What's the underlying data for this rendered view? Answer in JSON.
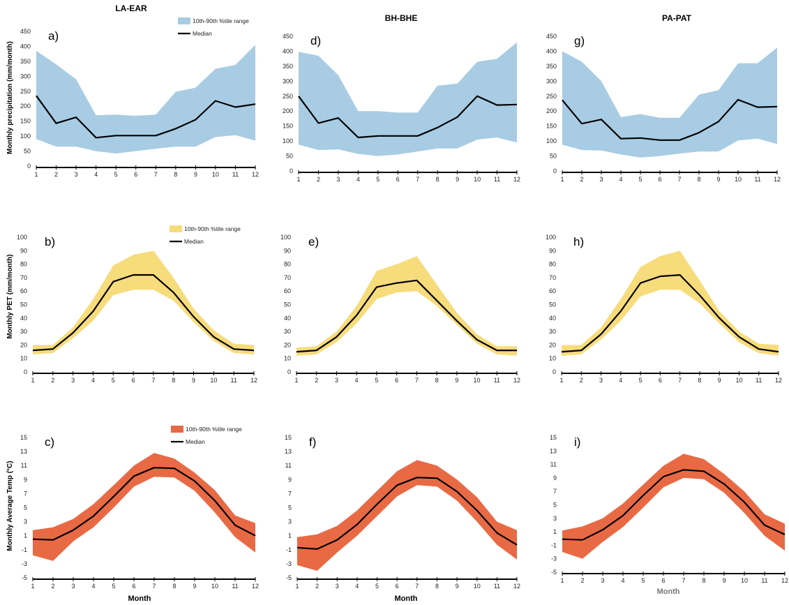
{
  "column_titles": [
    "LA-EAR",
    "BH-BHE",
    "PA-PAT"
  ],
  "row_ylabels": [
    "Monthly precipitation (mm/month)",
    "Monthly PET (mm/month)",
    "Monthly  Average Temp  (°C)"
  ],
  "xlabel": "Month",
  "legend": {
    "range_label": "10th-90th %tile range",
    "median_label": "Median"
  },
  "colors": {
    "precipitation": "#a8cce3",
    "pet": "#f7dc7c",
    "temperature": "#e86a45",
    "median": "#000000",
    "axis": "#000000"
  },
  "chart_data": [
    {
      "panel": "a)",
      "type": "area",
      "x": [
        1,
        2,
        3,
        4,
        5,
        6,
        7,
        8,
        9,
        10,
        11,
        12
      ],
      "median": [
        235,
        143,
        163,
        95,
        102,
        102,
        102,
        125,
        155,
        218,
        197,
        207
      ],
      "p10": [
        90,
        65,
        65,
        50,
        42,
        50,
        58,
        65,
        65,
        97,
        103,
        85
      ],
      "p90": [
        385,
        340,
        290,
        170,
        172,
        168,
        172,
        248,
        262,
        325,
        338,
        405
      ],
      "ylim": [
        0,
        450
      ],
      "yticks": [
        0,
        50,
        100,
        150,
        200,
        250,
        300,
        350,
        400,
        450
      ],
      "legend": true
    },
    {
      "panel": "b)",
      "type": "area",
      "x": [
        1,
        2,
        3,
        4,
        5,
        6,
        7,
        8,
        9,
        10,
        11,
        12
      ],
      "median": [
        16,
        17,
        29,
        45,
        67,
        72,
        72,
        59,
        41,
        26,
        17,
        16
      ],
      "p10": [
        13,
        14,
        25,
        38,
        57,
        61,
        61,
        53,
        37,
        23,
        14,
        13
      ],
      "p90": [
        20,
        20,
        33,
        54,
        79,
        87,
        90,
        70,
        47,
        31,
        21,
        20
      ],
      "ylim": [
        0,
        100
      ],
      "yticks": [
        0,
        10,
        20,
        30,
        40,
        50,
        60,
        70,
        80,
        90,
        100
      ],
      "legend": true
    },
    {
      "panel": "c)",
      "type": "area",
      "x": [
        1,
        2,
        3,
        4,
        5,
        6,
        7,
        8,
        9,
        10,
        11,
        12
      ],
      "median": [
        0.5,
        0.4,
        1.8,
        3.8,
        6.6,
        9.5,
        10.7,
        10.6,
        8.8,
        6.0,
        2.5,
        1.0
      ],
      "p10": [
        -1.8,
        -2.6,
        0.2,
        2.2,
        5.0,
        8.0,
        9.4,
        9.3,
        7.4,
        4.3,
        0.8,
        -1.4
      ],
      "p90": [
        1.8,
        2.2,
        3.4,
        5.5,
        8.2,
        11.0,
        12.8,
        12.0,
        10.0,
        7.5,
        3.9,
        2.8
      ],
      "ylim": [
        -5,
        15
      ],
      "yticks": [
        -5,
        -3,
        -1,
        1,
        3,
        5,
        7,
        9,
        11,
        13,
        15
      ],
      "legend": true
    },
    {
      "panel": "d)",
      "type": "area",
      "x": [
        1,
        2,
        3,
        4,
        5,
        6,
        7,
        8,
        9,
        10,
        11,
        12
      ],
      "median": [
        250,
        160,
        177,
        112,
        117,
        117,
        117,
        145,
        180,
        250,
        220,
        222
      ],
      "p10": [
        88,
        70,
        72,
        57,
        50,
        55,
        65,
        75,
        75,
        105,
        112,
        95
      ],
      "p90": [
        398,
        385,
        320,
        200,
        200,
        195,
        195,
        285,
        292,
        365,
        375,
        430
      ],
      "ylim": [
        0,
        450
      ],
      "yticks": [
        0,
        50,
        100,
        150,
        200,
        250,
        300,
        350,
        400,
        450
      ],
      "legend": false
    },
    {
      "panel": "e)",
      "type": "area",
      "x": [
        1,
        2,
        3,
        4,
        5,
        6,
        7,
        8,
        9,
        10,
        11,
        12
      ],
      "median": [
        15,
        16,
        26,
        42,
        63,
        66,
        68,
        53,
        38,
        24,
        16,
        16
      ],
      "p10": [
        12,
        13,
        22,
        36,
        54,
        59,
        60,
        49,
        35,
        21,
        13,
        12
      ],
      "p90": [
        18,
        19,
        30,
        49,
        75,
        80,
        86,
        65,
        44,
        28,
        19,
        19
      ],
      "ylim": [
        0,
        100
      ],
      "yticks": [
        0,
        10,
        20,
        30,
        40,
        50,
        60,
        70,
        80,
        90,
        100
      ],
      "legend": false
    },
    {
      "panel": "f)",
      "type": "area",
      "x": [
        1,
        2,
        3,
        4,
        5,
        6,
        7,
        8,
        9,
        10,
        11,
        12
      ],
      "median": [
        -0.7,
        -0.9,
        0.4,
        2.6,
        5.5,
        8.2,
        9.3,
        9.2,
        7.3,
        4.6,
        1.4,
        -0.3
      ],
      "p10": [
        -3.2,
        -4.0,
        -1.4,
        1.0,
        3.8,
        6.6,
        8.2,
        8.0,
        6.0,
        3.0,
        -0.3,
        -2.4
      ],
      "p90": [
        0.8,
        1.2,
        2.4,
        4.6,
        7.4,
        10.2,
        11.8,
        11.0,
        9.0,
        6.5,
        3.0,
        1.8
      ],
      "ylim": [
        -5,
        15
      ],
      "yticks": [
        -5,
        -3,
        -1,
        1,
        3,
        5,
        7,
        9,
        11,
        13,
        15
      ],
      "legend": false
    },
    {
      "panel": "g)",
      "type": "area",
      "x": [
        1,
        2,
        3,
        4,
        5,
        6,
        7,
        8,
        9,
        10,
        11,
        12
      ],
      "median": [
        237,
        158,
        172,
        108,
        110,
        103,
        103,
        128,
        165,
        238,
        213,
        215
      ],
      "p10": [
        88,
        70,
        68,
        55,
        45,
        50,
        58,
        65,
        65,
        102,
        108,
        90
      ],
      "p90": [
        400,
        365,
        300,
        180,
        190,
        178,
        178,
        255,
        270,
        360,
        360,
        412
      ],
      "ylim": [
        0,
        450
      ],
      "yticks": [
        0,
        50,
        100,
        150,
        200,
        250,
        300,
        350,
        400,
        450
      ],
      "legend": false
    },
    {
      "panel": "h)",
      "type": "area",
      "x": [
        1,
        2,
        3,
        4,
        5,
        6,
        7,
        8,
        9,
        10,
        11,
        12
      ],
      "median": [
        15,
        16,
        28,
        45,
        66,
        71,
        72,
        57,
        40,
        26,
        17,
        15
      ],
      "p10": [
        12,
        13,
        24,
        38,
        56,
        61,
        61,
        51,
        36,
        22,
        14,
        12
      ],
      "p90": [
        20,
        20,
        33,
        54,
        78,
        86,
        90,
        68,
        45,
        30,
        21,
        20
      ],
      "ylim": [
        0,
        100
      ],
      "yticks": [
        0,
        10,
        20,
        30,
        40,
        50,
        60,
        70,
        80,
        90,
        100
      ],
      "legend": false
    },
    {
      "panel": "i)",
      "type": "area",
      "x": [
        1,
        2,
        3,
        4,
        5,
        6,
        7,
        8,
        9,
        10,
        11,
        12
      ],
      "median": [
        -0.1,
        -0.2,
        1.3,
        3.4,
        6.4,
        9.2,
        10.2,
        10.0,
        8.1,
        5.4,
        2.0,
        0.6
      ],
      "p10": [
        -2.0,
        -3.0,
        -0.5,
        1.7,
        4.6,
        7.6,
        9.0,
        8.8,
        6.8,
        3.8,
        0.4,
        -1.8
      ],
      "p90": [
        1.2,
        1.8,
        3.0,
        5.2,
        8.0,
        10.8,
        12.6,
        11.8,
        9.6,
        7.0,
        3.6,
        2.2
      ],
      "ylim": [
        -5,
        15
      ],
      "yticks": [
        -5,
        -3,
        -1,
        1,
        3,
        5,
        7,
        9,
        11,
        13,
        15
      ],
      "legend": false
    }
  ]
}
